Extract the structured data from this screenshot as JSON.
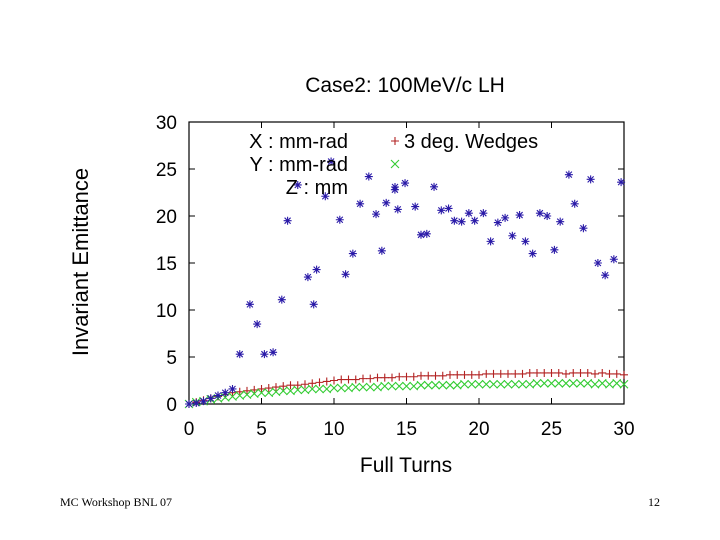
{
  "chart_data": {
    "type": "scatter",
    "title": "Case2: 100MeV/c LH",
    "xlabel": "Full Turns",
    "ylabel": "Invariant Emittance",
    "xlim": [
      0,
      30
    ],
    "ylim": [
      0,
      30
    ],
    "x_ticks": [
      0,
      5,
      10,
      15,
      20,
      25,
      30
    ],
    "y_ticks": [
      0,
      5,
      10,
      15,
      20,
      25,
      30
    ],
    "legend_title": "3 deg. Wedges",
    "legend_position": "top-left",
    "series": [
      {
        "name": "X : mm-rad",
        "marker": "plus",
        "color": "#b22222",
        "x": [
          0,
          0.5,
          1,
          1.5,
          2,
          2.5,
          3,
          3.5,
          4,
          4.5,
          5,
          5.5,
          6,
          6.5,
          7,
          7.5,
          8,
          8.5,
          9,
          9.5,
          10,
          10.5,
          11,
          11.5,
          12,
          12.5,
          13,
          13.5,
          14,
          14.5,
          15,
          15.5,
          16,
          16.5,
          17,
          17.5,
          18,
          18.5,
          19,
          19.5,
          20,
          20.5,
          21,
          21.5,
          22,
          22.5,
          23,
          23.5,
          24,
          24.5,
          25,
          25.5,
          26,
          26.5,
          27,
          27.5,
          28,
          28.5,
          29,
          29.5,
          30
        ],
        "y": [
          0,
          0.2,
          0.4,
          0.6,
          0.8,
          1.0,
          1.2,
          1.3,
          1.4,
          1.5,
          1.6,
          1.7,
          1.8,
          1.9,
          2.0,
          2.0,
          2.1,
          2.2,
          2.3,
          2.4,
          2.5,
          2.6,
          2.6,
          2.6,
          2.7,
          2.7,
          2.8,
          2.8,
          2.8,
          2.9,
          2.9,
          2.9,
          3.0,
          3.0,
          3.0,
          3.0,
          3.1,
          3.1,
          3.1,
          3.1,
          3.1,
          3.2,
          3.2,
          3.2,
          3.2,
          3.2,
          3.2,
          3.3,
          3.3,
          3.3,
          3.3,
          3.3,
          3.2,
          3.3,
          3.3,
          3.3,
          3.2,
          3.3,
          3.2,
          3.2,
          3.1
        ]
      },
      {
        "name": "Y : mm-rad",
        "marker": "cross",
        "color": "#33cc33",
        "x": [
          0,
          0.5,
          1,
          1.5,
          2,
          2.5,
          3,
          3.5,
          4,
          4.5,
          5,
          5.5,
          6,
          6.5,
          7,
          7.5,
          8,
          8.5,
          9,
          9.5,
          10,
          10.5,
          11,
          11.5,
          12,
          12.5,
          13,
          13.5,
          14,
          14.5,
          15,
          15.5,
          16,
          16.5,
          17,
          17.5,
          18,
          18.5,
          19,
          19.5,
          20,
          20.5,
          21,
          21.5,
          22,
          22.5,
          23,
          23.5,
          24,
          24.5,
          25,
          25.5,
          26,
          26.5,
          27,
          27.5,
          28,
          28.5,
          29,
          29.5,
          30
        ],
        "y": [
          0,
          0.2,
          0.3,
          0.5,
          0.6,
          0.7,
          0.8,
          0.9,
          1.0,
          1.1,
          1.2,
          1.2,
          1.3,
          1.4,
          1.4,
          1.5,
          1.5,
          1.6,
          1.6,
          1.6,
          1.7,
          1.7,
          1.7,
          1.8,
          1.8,
          1.8,
          1.8,
          1.9,
          1.9,
          1.9,
          1.9,
          1.9,
          2.0,
          2.0,
          2.0,
          2.0,
          2.0,
          2.0,
          2.1,
          2.1,
          2.1,
          2.1,
          2.1,
          2.1,
          2.1,
          2.1,
          2.1,
          2.1,
          2.2,
          2.2,
          2.2,
          2.2,
          2.2,
          2.2,
          2.2,
          2.2,
          2.1,
          2.2,
          2.1,
          2.2,
          2.1
        ]
      },
      {
        "name": "Z : mm",
        "marker": "star",
        "color": "#2a1aa8",
        "x": [
          0,
          0.5,
          1,
          1.5,
          2,
          2.5,
          3,
          3.5,
          4.2,
          4.7,
          5.2,
          5.8,
          6.4,
          6.8,
          7.5,
          8.2,
          8.6,
          8.8,
          9.4,
          9.8,
          10.4,
          10.8,
          11.3,
          11.8,
          12.4,
          12.9,
          13.3,
          13.6,
          14.2,
          14.4,
          14.9,
          15.6,
          16.0,
          16.4,
          16.9,
          17.4,
          17.9,
          18.3,
          18.8,
          19.3,
          19.7,
          20.3,
          20.8,
          21.3,
          21.8,
          22.3,
          22.8,
          23.2,
          23.7,
          24.2,
          24.7,
          25.2,
          25.6,
          26.2,
          26.6,
          27.2,
          27.7,
          28.2,
          28.7,
          29.3,
          29.8
        ],
        "y": [
          0,
          0.1,
          0.3,
          0.6,
          0.9,
          1.2,
          1.6,
          5.3,
          10.6,
          8.5,
          5.3,
          5.5,
          11.1,
          19.5,
          23.3,
          13.5,
          10.6,
          14.3,
          22.1,
          25.8,
          19.6,
          13.8,
          16.0,
          21.3,
          24.2,
          20.2,
          16.3,
          21.4,
          22.8,
          20.7,
          23.5,
          21.0,
          18.0,
          18.1,
          23.1,
          20.6,
          20.8,
          19.5,
          19.4,
          20.3,
          19.5,
          20.3,
          17.3,
          19.3,
          19.8,
          17.9,
          20.1,
          17.3,
          16.0,
          20.3,
          20.0,
          16.4,
          19.4,
          24.4,
          21.3,
          18.7,
          23.9,
          15.0,
          13.7,
          15.4,
          23.6
        ]
      }
    ]
  },
  "footer": {
    "left": "MC Workshop BNL 07",
    "right": "12"
  }
}
